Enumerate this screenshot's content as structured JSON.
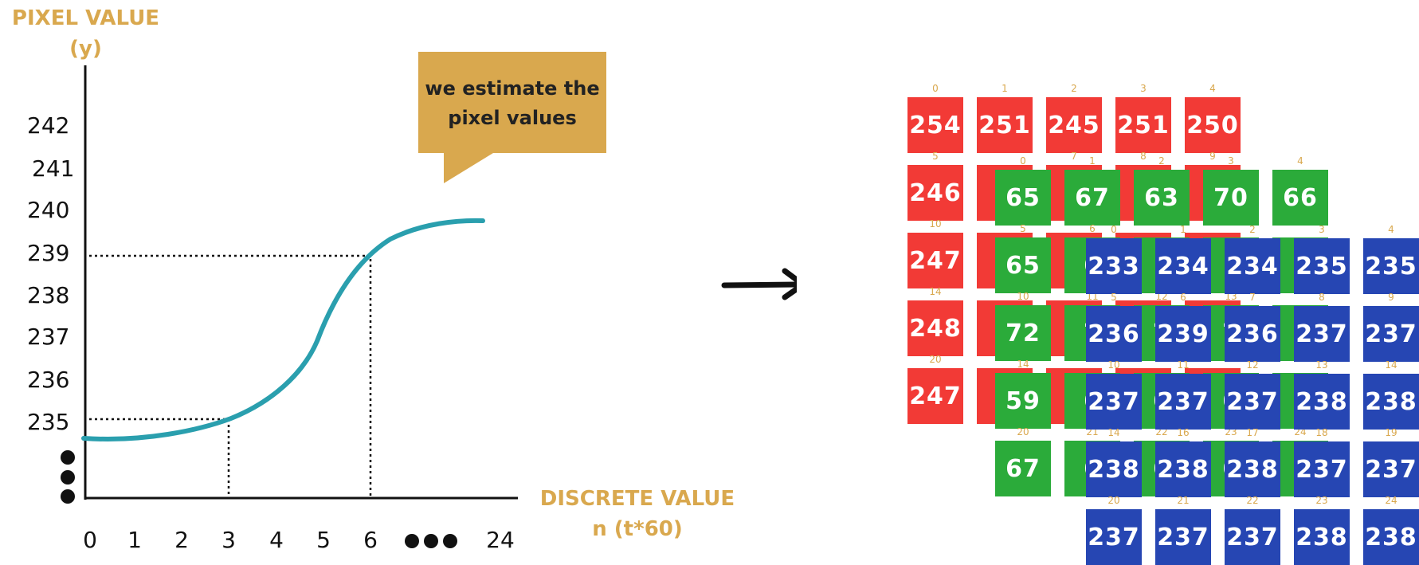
{
  "plot": {
    "y_title": "PIXEL VALUE\n(y)",
    "x_title": "DISCRETE VALUE\nn (t*60)",
    "y_ticks": [
      "242",
      "241",
      "240",
      "239",
      "238",
      "237",
      "236",
      "235"
    ],
    "x_ticks": [
      "0",
      "1",
      "2",
      "3",
      "4",
      "5",
      "6",
      "24"
    ],
    "callout": "we estimate the\npixel values",
    "curve_color": "#2a9fae",
    "guides": [
      {
        "x": 3,
        "y": 235
      },
      {
        "x": 6,
        "y": 239
      }
    ]
  },
  "grids": {
    "red": {
      "color": "#f23a36",
      "indices": [
        [
          "0",
          "1",
          "2",
          "3",
          "4"
        ],
        [
          "5",
          "",
          "7",
          "8",
          "9"
        ],
        [
          "10",
          "",
          "",
          "",
          ""
        ],
        [
          "14",
          "",
          "",
          "",
          ""
        ],
        [
          "20",
          "",
          "",
          "",
          ""
        ]
      ],
      "values": [
        [
          "254",
          "251",
          "245",
          "251",
          "250"
        ],
        [
          "246",
          "2",
          "2",
          "2",
          "2"
        ],
        [
          "247",
          "2",
          "2",
          "",
          ""
        ],
        [
          "248",
          "2",
          "",
          "",
          ""
        ],
        [
          "247",
          "2",
          "2",
          "",
          ""
        ]
      ]
    },
    "green": {
      "color": "#2bab3a",
      "indices": [
        [
          "0",
          "1",
          "2",
          "3",
          "4"
        ],
        [
          "5",
          "6",
          "",
          "",
          ""
        ],
        [
          "10",
          "11",
          "12",
          "13",
          ""
        ],
        [
          "14",
          "",
          "",
          "",
          ""
        ],
        [
          "20",
          "21",
          "22",
          "23",
          "24"
        ]
      ],
      "values": [
        [
          "65",
          "67",
          "63",
          "70",
          "66"
        ],
        [
          "65",
          "6",
          "",
          "",
          ""
        ],
        [
          "72",
          "7",
          "7",
          "7",
          ""
        ],
        [
          "59",
          "6",
          "6",
          "6",
          ""
        ],
        [
          "67",
          "6",
          "6",
          "6",
          ""
        ]
      ]
    },
    "blue": {
      "color": "#2646b3",
      "indices": [
        [
          "0",
          "1",
          "2",
          "3",
          "4"
        ],
        [
          "5",
          "6",
          "7",
          "8",
          "9"
        ],
        [
          "10",
          "11",
          "12",
          "13",
          "14"
        ],
        [
          "14",
          "16",
          "17",
          "18",
          "19"
        ],
        [
          "20",
          "21",
          "22",
          "23",
          "24"
        ]
      ],
      "values": [
        [
          "233",
          "234",
          "234",
          "235",
          "235"
        ],
        [
          "236",
          "239",
          "236",
          "237",
          "237"
        ],
        [
          "237",
          "237",
          "237",
          "238",
          "238"
        ],
        [
          "238",
          "238",
          "238",
          "237",
          "237"
        ],
        [
          "237",
          "237",
          "237",
          "238",
          "238"
        ]
      ]
    }
  }
}
